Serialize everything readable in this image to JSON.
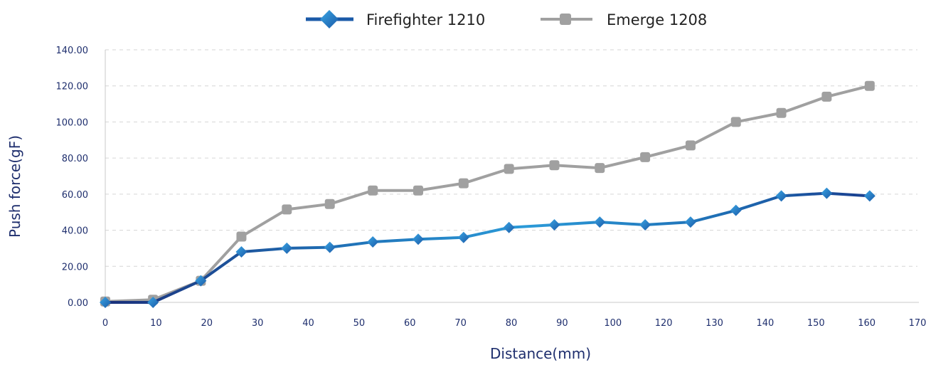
{
  "chart_data": {
    "type": "line",
    "xlabel": "Distance(mm)",
    "ylabel": "Push force(gF)",
    "categories": [
      "0",
      "10",
      "20",
      "30",
      "40",
      "50",
      "60",
      "70",
      "80",
      "90",
      "100",
      "120",
      "130",
      "140",
      "150",
      "160",
      "170"
    ],
    "ylim": [
      0,
      140
    ],
    "y_ticks": [
      "0.00",
      "20.00",
      "40.00",
      "60.00",
      "80.00",
      "100.00",
      "120.00",
      "140.00"
    ],
    "grid": true,
    "legend_position": "top-center",
    "series": [
      {
        "name": "Firefighter 1210",
        "color": "#1a5aa8",
        "marker": "diamond",
        "x": [
          0,
          10,
          20,
          28.5,
          38,
          47,
          56,
          65.5,
          75,
          84.5,
          94,
          103.5,
          113,
          122.5,
          132,
          141.5,
          151,
          160
        ],
        "values": [
          0,
          0,
          12,
          28,
          30,
          30.5,
          33.5,
          35,
          36,
          41.5,
          43,
          44.5,
          43,
          44.5,
          51,
          59,
          60.5,
          59
        ]
      },
      {
        "name": "Emerge 1208",
        "color": "#a0a0a0",
        "marker": "square",
        "x": [
          0,
          10,
          20,
          28.5,
          38,
          47,
          56,
          65.5,
          75,
          84.5,
          94,
          103.5,
          113,
          122.5,
          132,
          141.5,
          151,
          160
        ],
        "values": [
          0.5,
          1.5,
          12,
          36.5,
          51.5,
          54.5,
          62,
          62,
          66,
          74,
          76,
          74.5,
          80.5,
          87,
          100,
          105,
          114,
          120
        ]
      }
    ]
  }
}
